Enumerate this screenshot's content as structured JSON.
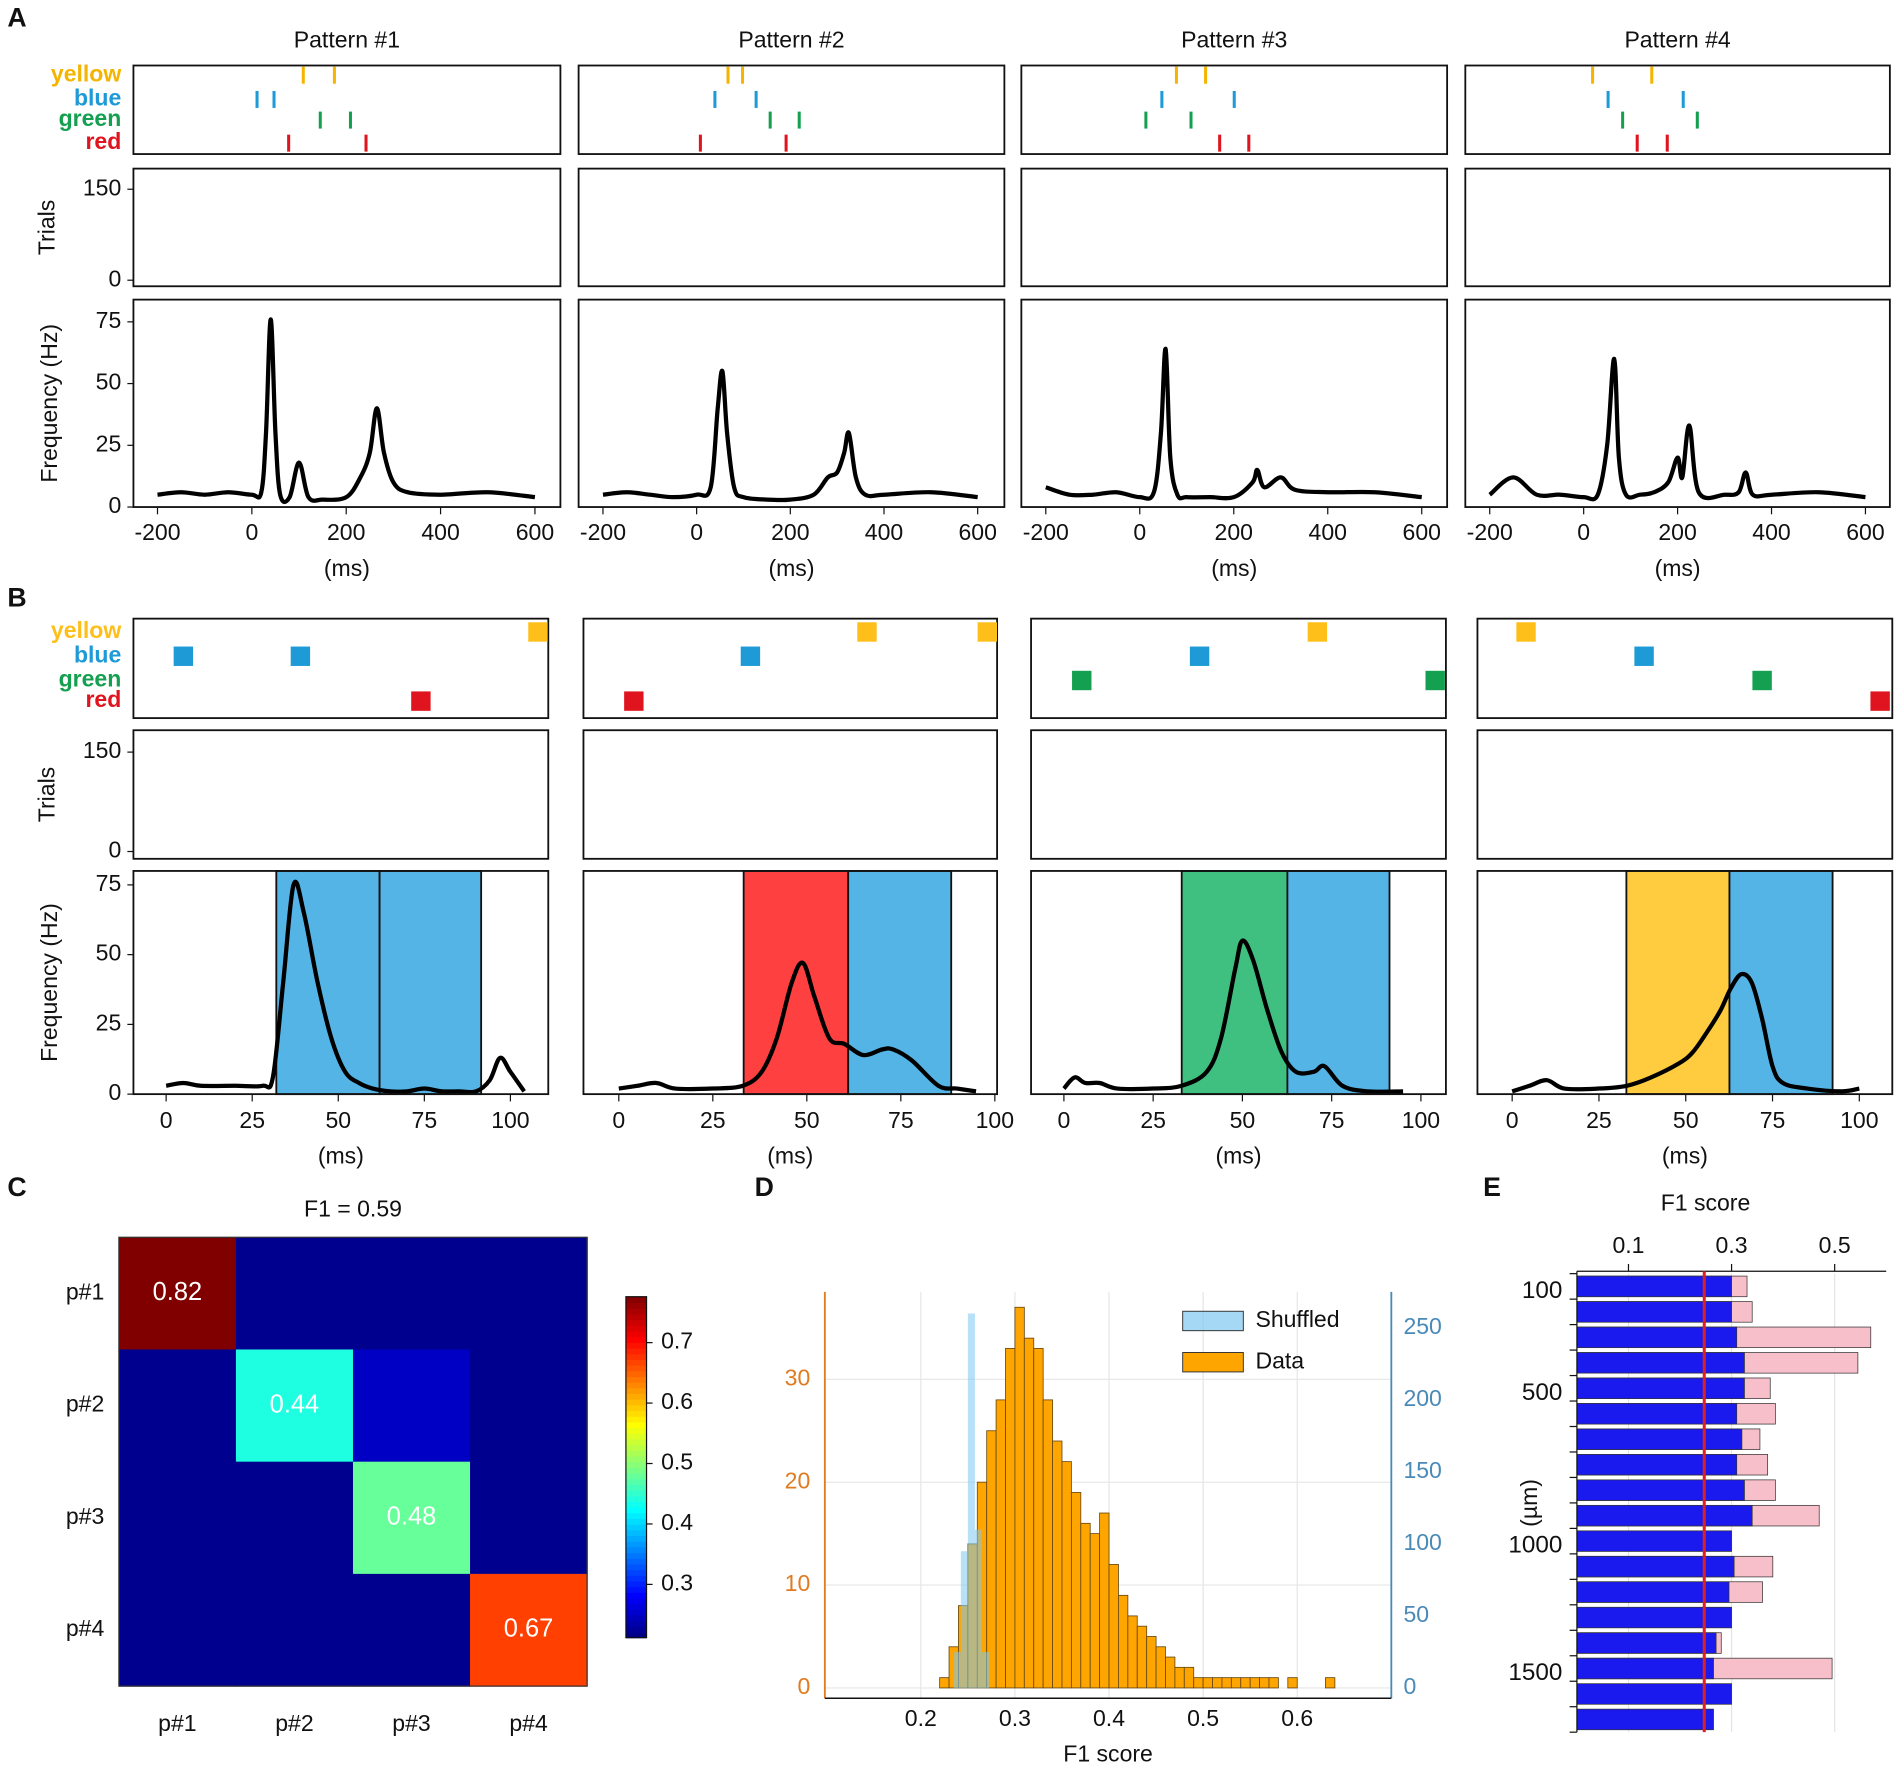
{
  "panel_labels": [
    "A",
    "B",
    "C",
    "D",
    "E"
  ],
  "chart_data": [
    {
      "type": "stim-psth",
      "title": "Pattern #1",
      "stimulus_rows": [
        "yellow",
        "blue",
        "green",
        "red"
      ],
      "stimulus_colors": [
        "#f5b400",
        "#1e9bd7",
        "#14a050",
        "#e0141e"
      ],
      "events": [
        [
          109,
          175
        ],
        [
          11,
          47
        ],
        [
          145,
          209
        ],
        [
          78,
          242
        ]
      ],
      "raster_ylabel": "Trials",
      "raster_ylim": [
        -10,
        184
      ],
      "raster_yticks": [
        0,
        150
      ],
      "ylabel": "Frequency (Hz)",
      "ylim": [
        0,
        84
      ],
      "yticks": [
        0,
        25,
        50,
        75
      ],
      "xlim": [
        -251,
        654
      ],
      "xticks": [
        -200,
        0,
        200,
        400,
        600
      ],
      "xlabel": "(ms)",
      "color": "#000000",
      "x": [
        -200,
        -150,
        -100,
        -50,
        0,
        20,
        30,
        40,
        50,
        60,
        80,
        100,
        120,
        150,
        200,
        230,
        250,
        265,
        280,
        300,
        330,
        400,
        500,
        600
      ],
      "values": [
        5,
        6,
        5,
        6,
        5,
        6,
        30,
        76,
        30,
        5,
        4,
        18,
        4,
        3,
        4,
        12,
        22,
        40,
        22,
        10,
        6,
        5,
        6,
        4
      ]
    },
    {
      "type": "stim-psth",
      "title": "Pattern #2",
      "events": [
        [
          67,
          98
        ],
        [
          39,
          127
        ],
        [
          157,
          219
        ],
        [
          8,
          191
        ]
      ],
      "raster_ylim": [
        -10,
        184
      ],
      "ylim": [
        0,
        84
      ],
      "xlim": [
        -252,
        657
      ],
      "xticks": [
        -200,
        0,
        200,
        400,
        600
      ],
      "xlabel": "(ms)",
      "color": "#000000",
      "x": [
        -200,
        -150,
        -100,
        -50,
        0,
        30,
        45,
        55,
        65,
        80,
        100,
        150,
        200,
        250,
        280,
        300,
        315,
        325,
        340,
        360,
        400,
        500,
        600
      ],
      "values": [
        5,
        6,
        5,
        4,
        5,
        8,
        40,
        55,
        30,
        8,
        4,
        3,
        3,
        5,
        12,
        14,
        22,
        30,
        12,
        5,
        5,
        6,
        4
      ]
    },
    {
      "type": "stim-psth",
      "title": "Pattern #3",
      "events": [
        [
          78,
          140
        ],
        [
          47,
          201
        ],
        [
          13,
          109
        ],
        [
          170,
          232
        ]
      ],
      "raster_ylim": [
        -10,
        184
      ],
      "ylim": [
        0,
        84
      ],
      "xlim": [
        -252,
        654
      ],
      "xticks": [
        -200,
        0,
        200,
        400,
        600
      ],
      "xlabel": "(ms)",
      "color": "#000000",
      "x": [
        -200,
        -150,
        -100,
        -50,
        0,
        30,
        45,
        55,
        65,
        80,
        100,
        150,
        200,
        240,
        250,
        265,
        300,
        330,
        400,
        500,
        600
      ],
      "values": [
        8,
        5,
        5,
        6,
        4,
        6,
        30,
        64,
        20,
        5,
        4,
        4,
        4,
        10,
        15,
        8,
        12,
        7,
        6,
        6,
        4
      ]
    },
    {
      "type": "stim-psth",
      "title": "Pattern #4",
      "events": [
        [
          19,
          145
        ],
        [
          52,
          212
        ],
        [
          83,
          242
        ],
        [
          114,
          178
        ]
      ],
      "raster_ylim": [
        -10,
        184
      ],
      "ylim": [
        0,
        84
      ],
      "xlim": [
        -252,
        652
      ],
      "xticks": [
        -200,
        0,
        200,
        400,
        600
      ],
      "xlabel": "(ms)",
      "color": "#000000",
      "x": [
        -200,
        -150,
        -100,
        -50,
        0,
        30,
        50,
        65,
        75,
        90,
        120,
        150,
        180,
        200,
        210,
        225,
        245,
        300,
        330,
        345,
        360,
        400,
        500,
        600
      ],
      "values": [
        5,
        12,
        5,
        5,
        4,
        5,
        25,
        60,
        20,
        5,
        5,
        6,
        10,
        20,
        12,
        33,
        6,
        5,
        6,
        14,
        5,
        5,
        6,
        4
      ]
    },
    {
      "type": "stim-psth",
      "stimulus_rows": [
        "yellow",
        "blue",
        "green",
        "red"
      ],
      "stimulus_colors": [
        "#ffbf1a",
        "#1e9bd7",
        "#14a050",
        "#e0141e"
      ],
      "events": [
        [
          108
        ],
        [
          5,
          39
        ],
        [],
        [
          74
        ]
      ],
      "raster_ylabel": "Trials",
      "raster_ylim": [
        -11,
        183
      ],
      "raster_yticks": [
        0,
        150
      ],
      "ylabel": "Frequency (Hz)",
      "ylim": [
        0,
        80
      ],
      "yticks": [
        0,
        25,
        50,
        75
      ],
      "xlim": [
        -9.5,
        111
      ],
      "xticks": [
        0,
        25,
        50,
        75,
        100
      ],
      "xlabel": "(ms)",
      "color": "#000000",
      "windows": [
        {
          "x0": 32,
          "x1": 62,
          "color": "#55b4e6"
        },
        {
          "x0": 62,
          "x1": 91.5,
          "color": "#55b4e6"
        }
      ],
      "x": [
        0,
        5,
        10,
        20,
        28,
        31,
        34,
        37,
        40,
        44,
        48,
        52,
        56,
        60,
        65,
        70,
        75,
        80,
        85,
        90,
        94,
        97,
        100,
        104
      ],
      "values": [
        3,
        4,
        3,
        3,
        3,
        6,
        40,
        75,
        65,
        40,
        20,
        8,
        4,
        2,
        1,
        1,
        2,
        1,
        1,
        1,
        5,
        13,
        8,
        1
      ]
    },
    {
      "type": "stim-psth",
      "events": [
        [
          66,
          98
        ],
        [
          35
        ],
        [],
        [
          4
        ]
      ],
      "raster_ylim": [
        -11,
        183
      ],
      "ylim": [
        0,
        80
      ],
      "xlim": [
        -9.4,
        100.6
      ],
      "xticks": [
        0,
        25,
        50,
        75,
        100
      ],
      "xlabel": "(ms)",
      "color": "#000000",
      "windows": [
        {
          "x0": 33.2,
          "x1": 61,
          "color": "#ff4040"
        },
        {
          "x0": 61,
          "x1": 88.4,
          "color": "#55b4e6"
        }
      ],
      "x": [
        0,
        5,
        10,
        15,
        25,
        33,
        38,
        42,
        46,
        49,
        52,
        56,
        60,
        65,
        70,
        73,
        78,
        85,
        90,
        95
      ],
      "values": [
        2,
        3,
        4,
        2,
        2,
        3,
        8,
        20,
        40,
        47,
        35,
        20,
        18,
        14,
        16,
        16,
        12,
        3,
        2,
        1
      ]
    },
    {
      "type": "stim-psth",
      "events": [
        [
          71
        ],
        [
          38
        ],
        [
          5,
          104
        ],
        []
      ],
      "raster_ylim": [
        -11,
        183
      ],
      "ylim": [
        0,
        80
      ],
      "xlim": [
        -9.2,
        107
      ],
      "xticks": [
        0,
        25,
        50,
        75,
        100
      ],
      "xlabel": "(ms)",
      "color": "#000000",
      "windows": [
        {
          "x0": 33,
          "x1": 62.6,
          "color": "#40c080"
        },
        {
          "x0": 62.6,
          "x1": 91.2,
          "color": "#55b4e6"
        }
      ],
      "x": [
        0,
        3,
        6,
        10,
        15,
        25,
        33,
        40,
        44,
        48,
        50,
        53,
        57,
        61,
        65,
        70,
        73,
        78,
        85,
        95
      ],
      "values": [
        2,
        6,
        4,
        4,
        2,
        2,
        3,
        8,
        20,
        45,
        55,
        48,
        30,
        15,
        8,
        8,
        10,
        3,
        1,
        1
      ]
    },
    {
      "type": "stim-psth",
      "events": [
        [
          4
        ],
        [
          38
        ],
        [
          72
        ],
        [
          106
        ]
      ],
      "raster_ylim": [
        -11,
        183
      ],
      "ylim": [
        0,
        80
      ],
      "xlim": [
        -10,
        109.5
      ],
      "xticks": [
        0,
        25,
        50,
        75,
        100
      ],
      "xlabel": "(ms)",
      "color": "#000000",
      "windows": [
        {
          "x0": 32.9,
          "x1": 62.6,
          "color": "#ffcc40"
        },
        {
          "x0": 62.6,
          "x1": 92.3,
          "color": "#55b4e6"
        }
      ],
      "x": [
        0,
        5,
        10,
        15,
        25,
        33,
        40,
        48,
        52,
        56,
        60,
        63,
        66,
        69,
        72,
        75,
        78,
        85,
        95,
        100
      ],
      "values": [
        1,
        3,
        5,
        2,
        2,
        3,
        6,
        11,
        15,
        22,
        30,
        38,
        43,
        40,
        27,
        10,
        4,
        2,
        1,
        2
      ]
    },
    {
      "type": "heatmap",
      "title": "F1 = 0.59",
      "categories": [
        "p#1",
        "p#2",
        "p#3",
        "p#4"
      ],
      "values": [
        [
          0.82,
          0.22,
          0.22,
          0.22
        ],
        [
          0.22,
          0.44,
          0.25,
          0.22
        ],
        [
          0.22,
          0.22,
          0.48,
          0.22
        ],
        [
          0.22,
          0.22,
          0.22,
          0.67
        ]
      ],
      "value_labels": [
        [
          "0.82",
          null,
          null,
          null
        ],
        [
          null,
          "0.44",
          null,
          null
        ],
        [
          null,
          null,
          "0.48",
          null
        ],
        [
          null,
          null,
          null,
          "0.67"
        ]
      ],
      "colorbar_lim": [
        0.212,
        0.776
      ],
      "colorbar_ticks": [
        0.3,
        0.4,
        0.5,
        0.6,
        0.7
      ]
    },
    {
      "type": "histogram",
      "xlabel": "F1 score",
      "xlim": [
        0.098,
        0.7
      ],
      "xticks": [
        0.2,
        0.3,
        0.4,
        0.5,
        0.6
      ],
      "ylim": [
        -1,
        38.5
      ],
      "yticks": [
        0,
        10,
        20,
        30
      ],
      "y2lim": [
        -7,
        275
      ],
      "y2ticks": [
        0,
        50,
        100,
        150,
        200,
        250
      ],
      "ycolor": "#e07b20",
      "y2color": "#4a8ab8",
      "grid": true,
      "legend": "upper right",
      "series": [
        {
          "name": "Data",
          "color": "#ffa500",
          "bins": [
            0.22,
            0.23,
            0.24,
            0.25,
            0.26,
            0.27,
            0.28,
            0.29,
            0.3,
            0.31,
            0.32,
            0.33,
            0.34,
            0.35,
            0.36,
            0.37,
            0.38,
            0.39,
            0.4,
            0.41,
            0.42,
            0.43,
            0.44,
            0.45,
            0.46,
            0.47,
            0.48,
            0.49,
            0.5,
            0.51,
            0.52,
            0.53,
            0.54,
            0.55,
            0.56,
            0.57,
            0.58,
            0.59,
            0.6,
            0.61,
            0.62,
            0.63,
            0.64
          ],
          "values": [
            1,
            4,
            8,
            14,
            20,
            25,
            28,
            33,
            37,
            34,
            33,
            28,
            24,
            22,
            19,
            16,
            15,
            17,
            12,
            9,
            7,
            6,
            5,
            4,
            3,
            2,
            2,
            1,
            1,
            1,
            1,
            1,
            1,
            1,
            1,
            1,
            0,
            1,
            0,
            0,
            0,
            1
          ]
        },
        {
          "name": "Shuffled",
          "color": "#7ec8f0",
          "axis": "y2",
          "bins": [
            0.235,
            0.2425,
            0.25,
            0.2575,
            0.265,
            0.2725
          ],
          "values": [
            25,
            95,
            260,
            110,
            25
          ]
        }
      ]
    },
    {
      "type": "hbar",
      "xlabel": "F1 score",
      "ylabel": "(µm)",
      "xlim": [
        0,
        0.6
      ],
      "xticks": [
        0.1,
        0.3,
        0.5
      ],
      "categories": [
        "100",
        null,
        null,
        null,
        "500",
        null,
        null,
        null,
        null,
        null,
        "1000",
        null,
        null,
        null,
        null,
        "1500",
        null,
        null
      ],
      "reference_line": {
        "value": 0.247,
        "color": "#e02020"
      },
      "series": [
        {
          "color": "#f7bfca",
          "values": [
            0.33,
            0.34,
            0.57,
            0.545,
            0.375,
            0.385,
            0.355,
            0.37,
            0.385,
            0.47,
            null,
            0.38,
            0.36,
            null,
            0.28,
            0.495,
            null,
            null
          ]
        },
        {
          "color": "#1a1aee",
          "values": [
            0.3,
            0.3,
            0.31,
            0.325,
            0.325,
            0.31,
            0.32,
            0.31,
            0.325,
            0.34,
            0.3,
            0.305,
            0.295,
            0.3,
            0.27,
            0.265,
            0.3,
            0.265
          ]
        }
      ]
    }
  ]
}
